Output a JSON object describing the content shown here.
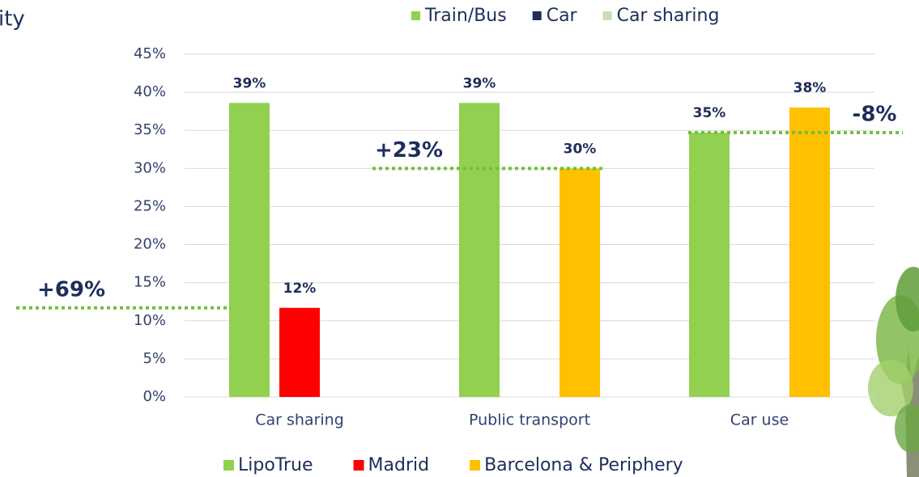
{
  "chart_data": {
    "type": "bar",
    "heading_fragment": "ity",
    "top_legend": [
      {
        "name": "Train/Bus",
        "color": "#92d050"
      },
      {
        "name": "Car",
        "color": "#1f2d5a"
      },
      {
        "name": "Car sharing",
        "color": "#c5e0b4"
      }
    ],
    "categories": [
      "Car sharing",
      "Public transport",
      "Car use"
    ],
    "series": [
      {
        "name": "LipoTrue",
        "color": "#92d050",
        "values": [
          38.6,
          38.6,
          34.7
        ],
        "value_labels": [
          "39%",
          "39%",
          "35%"
        ]
      },
      {
        "name": "Madrid",
        "color": "#ff0000",
        "values": [
          11.7,
          null,
          null
        ],
        "value_labels": [
          "12%",
          null,
          null
        ]
      },
      {
        "name": "Barcelona & Periphery",
        "color": "#ffc000",
        "values": [
          null,
          30,
          38
        ],
        "value_labels": [
          null,
          "30%",
          "38%"
        ]
      }
    ],
    "ylim": [
      0,
      45
    ],
    "yticks": [
      {
        "value": 0,
        "label": "0%"
      },
      {
        "value": 5,
        "label": "5%"
      },
      {
        "value": 10,
        "label": "10%"
      },
      {
        "value": 15,
        "label": "15%"
      },
      {
        "value": 20,
        "label": "20%"
      },
      {
        "value": 25,
        "label": "25%"
      },
      {
        "value": 30,
        "label": "30%"
      },
      {
        "value": 35,
        "label": "35%"
      },
      {
        "value": 40,
        "label": "40%"
      },
      {
        "value": 45,
        "label": "45%"
      }
    ],
    "grid": true,
    "annotations": [
      "+69%",
      "+23%",
      "-8%"
    ]
  }
}
